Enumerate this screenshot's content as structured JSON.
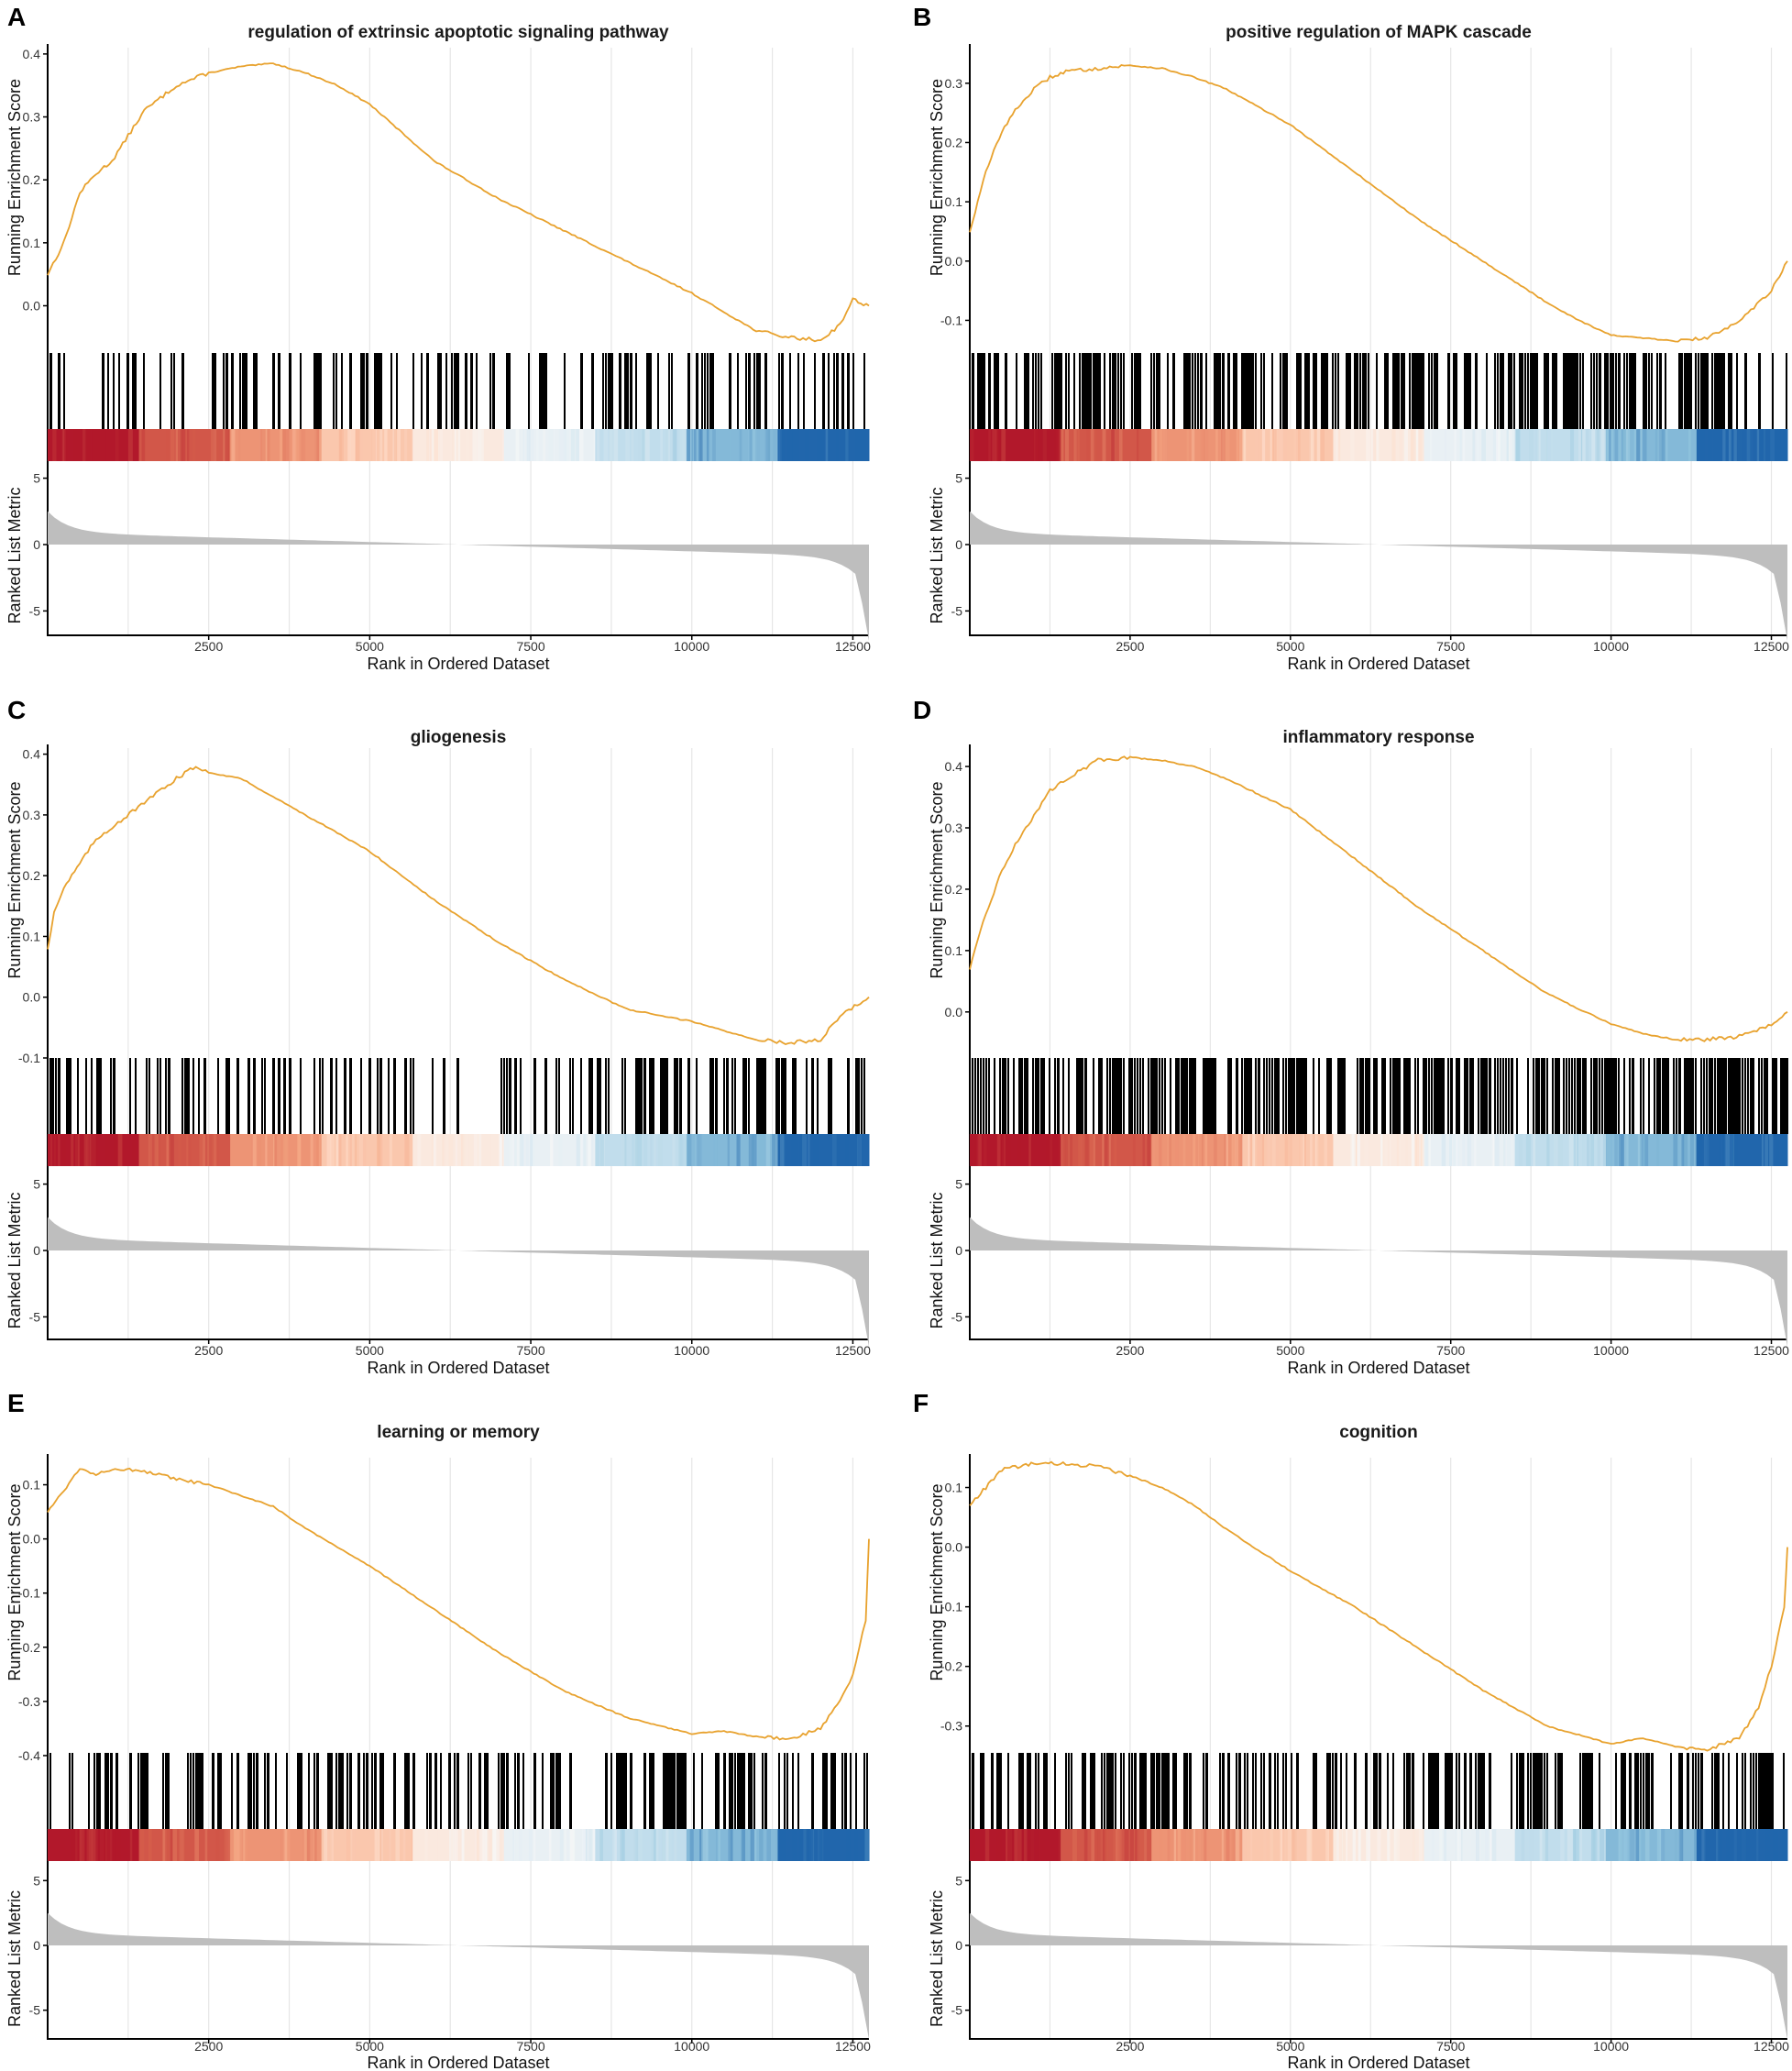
{
  "figure": {
    "x_axis_label": "Rank in Ordered Dataset",
    "es_axis_label": "Running Enrichment Score",
    "metric_axis_label": "Ranked List Metric",
    "metric_ticks": [
      "5",
      "0",
      "-5"
    ],
    "x_ticks": [
      "2500",
      "5000",
      "7500",
      "10000",
      "12500"
    ]
  },
  "colors": {
    "curve": "#E8A22E",
    "hits": "#000000",
    "metric_fill": "#BEBEBE",
    "gridline": "#E6E6E6",
    "heat": [
      "#B2182B",
      "#D6604D",
      "#F4A582",
      "#FDDBC7",
      "#F7F7F7",
      "#D1E5F0",
      "#92C5DE",
      "#2166AC"
    ]
  },
  "chart_data": [
    {
      "type": "line",
      "panel": "A",
      "title": "regulation of extrinsic apoptotic signaling pathway",
      "xlabel": "Rank in Ordered Dataset",
      "ylabel": "Running Enrichment Score",
      "xlim": [
        0,
        12750
      ],
      "ylim": [
        -0.075,
        0.41
      ],
      "yticks": [
        "0.4",
        "0.3",
        "0.2",
        "0.1",
        "0.0"
      ],
      "x": [
        0,
        250,
        500,
        750,
        1000,
        1250,
        1500,
        1750,
        2000,
        2500,
        3000,
        3500,
        4000,
        4500,
        5000,
        6000,
        7000,
        8000,
        9000,
        10000,
        10500,
        11000,
        11500,
        12000,
        12300,
        12500,
        12750
      ],
      "values": [
        0.05,
        0.1,
        0.18,
        0.21,
        0.23,
        0.27,
        0.31,
        0.33,
        0.35,
        0.37,
        0.38,
        0.385,
        0.37,
        0.35,
        0.32,
        0.23,
        0.17,
        0.12,
        0.07,
        0.02,
        -0.01,
        -0.04,
        -0.05,
        -0.055,
        -0.03,
        0.01,
        0.0
      ]
    },
    {
      "type": "line",
      "panel": "B",
      "title": "positive regulation of MAPK cascade",
      "xlabel": "Rank in Ordered Dataset",
      "ylabel": "Running Enrichment Score",
      "xlim": [
        0,
        12750
      ],
      "ylim": [
        -0.155,
        0.36
      ],
      "yticks": [
        "0.3",
        "0.2",
        "0.1",
        "0.0",
        "-0.1"
      ],
      "x": [
        0,
        250,
        500,
        750,
        1000,
        1250,
        1500,
        2000,
        2500,
        3000,
        3500,
        4000,
        5000,
        6000,
        7000,
        8000,
        9000,
        9500,
        10000,
        10500,
        11000,
        11500,
        12000,
        12500,
        12750
      ],
      "values": [
        0.05,
        0.15,
        0.22,
        0.26,
        0.29,
        0.31,
        0.32,
        0.325,
        0.33,
        0.325,
        0.31,
        0.29,
        0.23,
        0.15,
        0.07,
        0.0,
        -0.07,
        -0.1,
        -0.125,
        -0.13,
        -0.135,
        -0.13,
        -0.1,
        -0.05,
        0.0
      ]
    },
    {
      "type": "line",
      "panel": "C",
      "title": "gliogenesis",
      "xlabel": "Rank in Ordered Dataset",
      "ylabel": "Running Enrichment Score",
      "xlim": [
        0,
        12750
      ],
      "ylim": [
        -0.1,
        0.41
      ],
      "yticks": [
        "0.4",
        "0.3",
        "0.2",
        "0.1",
        "0.0",
        "-0.1"
      ],
      "x": [
        0,
        100,
        250,
        500,
        750,
        1000,
        1500,
        2000,
        2300,
        2500,
        3000,
        3500,
        4000,
        5000,
        6000,
        7000,
        8000,
        9000,
        10000,
        10500,
        11000,
        11500,
        12000,
        12300,
        12750
      ],
      "values": [
        0.08,
        0.14,
        0.18,
        0.22,
        0.26,
        0.28,
        0.32,
        0.36,
        0.38,
        0.37,
        0.36,
        0.33,
        0.3,
        0.24,
        0.16,
        0.09,
        0.03,
        -0.02,
        -0.04,
        -0.055,
        -0.07,
        -0.075,
        -0.07,
        -0.03,
        0.0
      ]
    },
    {
      "type": "line",
      "panel": "D",
      "title": "inflammatory response",
      "xlabel": "Rank in Ordered Dataset",
      "ylabel": "Running Enrichment Score",
      "xlim": [
        0,
        12750
      ],
      "ylim": [
        -0.075,
        0.43
      ],
      "yticks": [
        "0.4",
        "0.3",
        "0.2",
        "0.1",
        "0.0"
      ],
      "x": [
        0,
        250,
        500,
        750,
        1000,
        1250,
        1500,
        2000,
        2500,
        3000,
        3500,
        4000,
        5000,
        6000,
        7000,
        8000,
        9000,
        10000,
        10500,
        11000,
        11500,
        12000,
        12500,
        12750
      ],
      "values": [
        0.07,
        0.16,
        0.23,
        0.28,
        0.32,
        0.36,
        0.38,
        0.41,
        0.415,
        0.41,
        0.4,
        0.38,
        0.33,
        0.25,
        0.17,
        0.1,
        0.03,
        -0.02,
        -0.035,
        -0.045,
        -0.045,
        -0.04,
        -0.02,
        0.0
      ]
    },
    {
      "type": "line",
      "panel": "E",
      "title": "learning or memory",
      "xlabel": "Rank in Ordered Dataset",
      "ylabel": "Running Enrichment Score",
      "xlim": [
        0,
        12750
      ],
      "ylim": [
        -0.395,
        0.15
      ],
      "yticks": [
        "0.1",
        "0.0",
        "-0.1",
        "-0.2",
        "-0.3",
        "-0.4"
      ],
      "x": [
        0,
        250,
        500,
        750,
        1000,
        1500,
        2000,
        2500,
        3000,
        3500,
        4000,
        5000,
        6000,
        7000,
        8000,
        9000,
        10000,
        10500,
        11000,
        11500,
        12000,
        12300,
        12500,
        12700,
        12750
      ],
      "values": [
        0.05,
        0.09,
        0.13,
        0.12,
        0.13,
        0.125,
        0.11,
        0.1,
        0.08,
        0.06,
        0.02,
        -0.05,
        -0.13,
        -0.21,
        -0.28,
        -0.33,
        -0.36,
        -0.355,
        -0.365,
        -0.37,
        -0.35,
        -0.3,
        -0.25,
        -0.15,
        0.0
      ]
    },
    {
      "type": "line",
      "panel": "F",
      "title": "cognition",
      "xlabel": "Rank in Ordered Dataset",
      "ylabel": "Running Enrichment Score",
      "xlim": [
        0,
        12750
      ],
      "ylim": [
        -0.345,
        0.15
      ],
      "yticks": [
        "0.1",
        "0.0",
        "-0.1",
        "-0.2",
        "-0.3"
      ],
      "x": [
        0,
        250,
        500,
        750,
        1000,
        1500,
        2000,
        2500,
        3000,
        3500,
        4000,
        5000,
        6000,
        7000,
        8000,
        9000,
        10000,
        10500,
        11000,
        11500,
        12000,
        12300,
        12500,
        12700,
        12750
      ],
      "values": [
        0.07,
        0.1,
        0.13,
        0.135,
        0.14,
        0.14,
        0.135,
        0.12,
        0.1,
        0.07,
        0.03,
        -0.04,
        -0.1,
        -0.17,
        -0.24,
        -0.3,
        -0.33,
        -0.32,
        -0.335,
        -0.34,
        -0.32,
        -0.27,
        -0.2,
        -0.1,
        0.0
      ]
    }
  ]
}
